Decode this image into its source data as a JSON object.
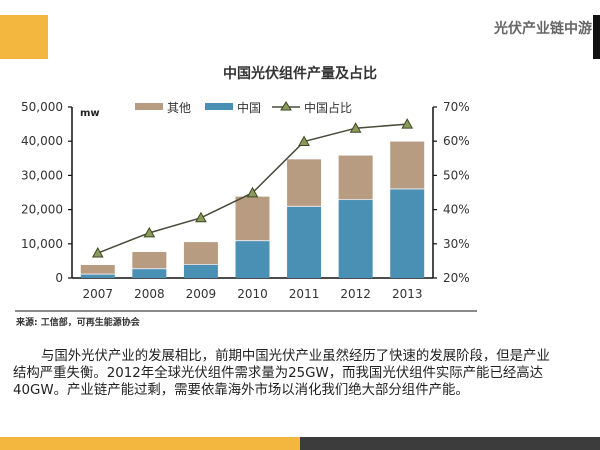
{
  "header": {
    "section_title": "光伏产业链中游",
    "accent_color": "#F3B63F"
  },
  "chart_data": {
    "type": "bar",
    "title": "中国光伏组件产量及占比",
    "unit_label": "mw",
    "categories": [
      "2007",
      "2008",
      "2009",
      "2010",
      "2011",
      "2012",
      "2013"
    ],
    "series": [
      {
        "name": "中国",
        "kind": "bar",
        "stack": "production",
        "color": "#4A90B5",
        "values": [
          1000,
          2600,
          3800,
          10800,
          20800,
          22800,
          25900
        ]
      },
      {
        "name": "其他",
        "kind": "bar",
        "stack": "production",
        "color": "#B89C82",
        "values": [
          2800,
          5000,
          6700,
          13000,
          13900,
          13000,
          14000
        ]
      },
      {
        "name": "中国占比",
        "kind": "line",
        "axis": "right",
        "color": "#4a4a3a",
        "marker": "triangle",
        "marker_color": "#8A9A5B",
        "values": [
          27.3,
          33.2,
          37.6,
          44.9,
          59.9,
          63.8,
          65.0
        ]
      }
    ],
    "legend": [
      "其他",
      "中国",
      "中国占比"
    ],
    "legend_position": "top",
    "y_left": {
      "min": 0,
      "max": 50000,
      "ticks": [
        "0",
        "10,000",
        "20,000",
        "30,000",
        "40,000",
        "50,000"
      ],
      "tick_values": [
        0,
        10000,
        20000,
        30000,
        40000,
        50000
      ]
    },
    "y_right": {
      "min": 20,
      "max": 70,
      "ticks": [
        "20%",
        "30%",
        "40%",
        "50%",
        "60%",
        "70%"
      ],
      "tick_values": [
        20,
        30,
        40,
        50,
        60,
        70
      ]
    },
    "grid": false
  },
  "source": "来源: 工信部，可再生能源协会",
  "body_text": "与国外光伏产业的发展相比，前期中国光伏产业虽然经历了快速的发展阶段，但是产业结构严重失衡。2012年全球光伏组件需求量为25GW，而我国光伏组件实际产能已经高达40GW。产业链产能过剩，需要依靠海外市场以消化我们绝大部分组件产能。"
}
